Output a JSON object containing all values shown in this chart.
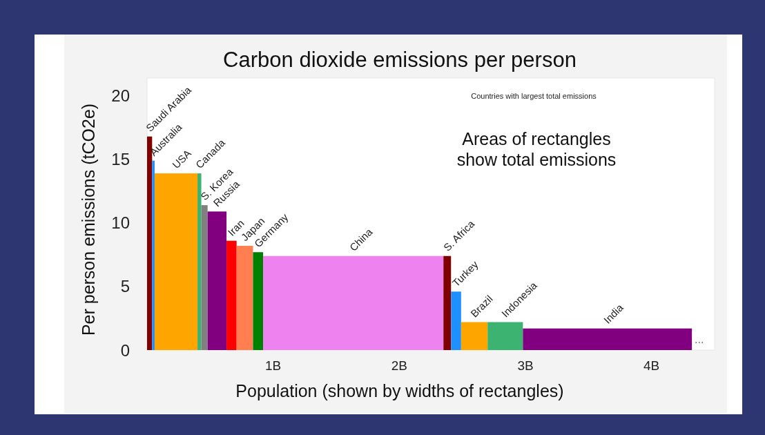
{
  "chart_data": {
    "type": "histogram",
    "title": "Carbon dioxide emissions per person",
    "xlabel": "Population (shown by widths of rectangles)",
    "ylabel": "Per person emissions (tCO2e)",
    "categories": [
      "Saudi Arabia",
      "Australia",
      "USA",
      "Canada",
      "S. Korea",
      "Russia",
      "Iran",
      "Japan",
      "Germany",
      "China",
      "S. Africa",
      "Turkey",
      "Brazil",
      "Indonesia",
      "India"
    ],
    "bins": [
      0,
      0.04,
      0.06,
      0.4,
      0.43,
      0.48,
      0.63,
      0.71,
      0.84,
      0.92,
      2.35,
      2.41,
      2.49,
      2.7,
      2.98,
      4.32
    ],
    "values": [
      16.8,
      14.9,
      13.9,
      13.9,
      11.4,
      10.9,
      8.6,
      8.2,
      7.7,
      7.4,
      7.4,
      4.6,
      2.2,
      2.2,
      1.7
    ],
    "colors": [
      "#800000",
      "#1e90ff",
      "#ffa500",
      "#3cb371",
      "#808080",
      "#800080",
      "#ff0000",
      "#ff7f50",
      "#008000",
      "#ee82ee",
      "#800000",
      "#1e90ff",
      "#ffa500",
      "#3cb371",
      "#800080"
    ],
    "xlim": [
      0,
      4.5
    ],
    "ylim": [
      0,
      21.4
    ],
    "xticks": [
      {
        "value": 1,
        "label": "1B"
      },
      {
        "value": 2,
        "label": "2B"
      },
      {
        "value": 3,
        "label": "3B"
      },
      {
        "value": 4,
        "label": "4B"
      }
    ],
    "yticks": [
      0,
      5,
      10,
      15,
      20
    ],
    "annotations": [
      "Countries with largest total emissions",
      "Areas of rectangles show total emissions",
      "..."
    ]
  }
}
